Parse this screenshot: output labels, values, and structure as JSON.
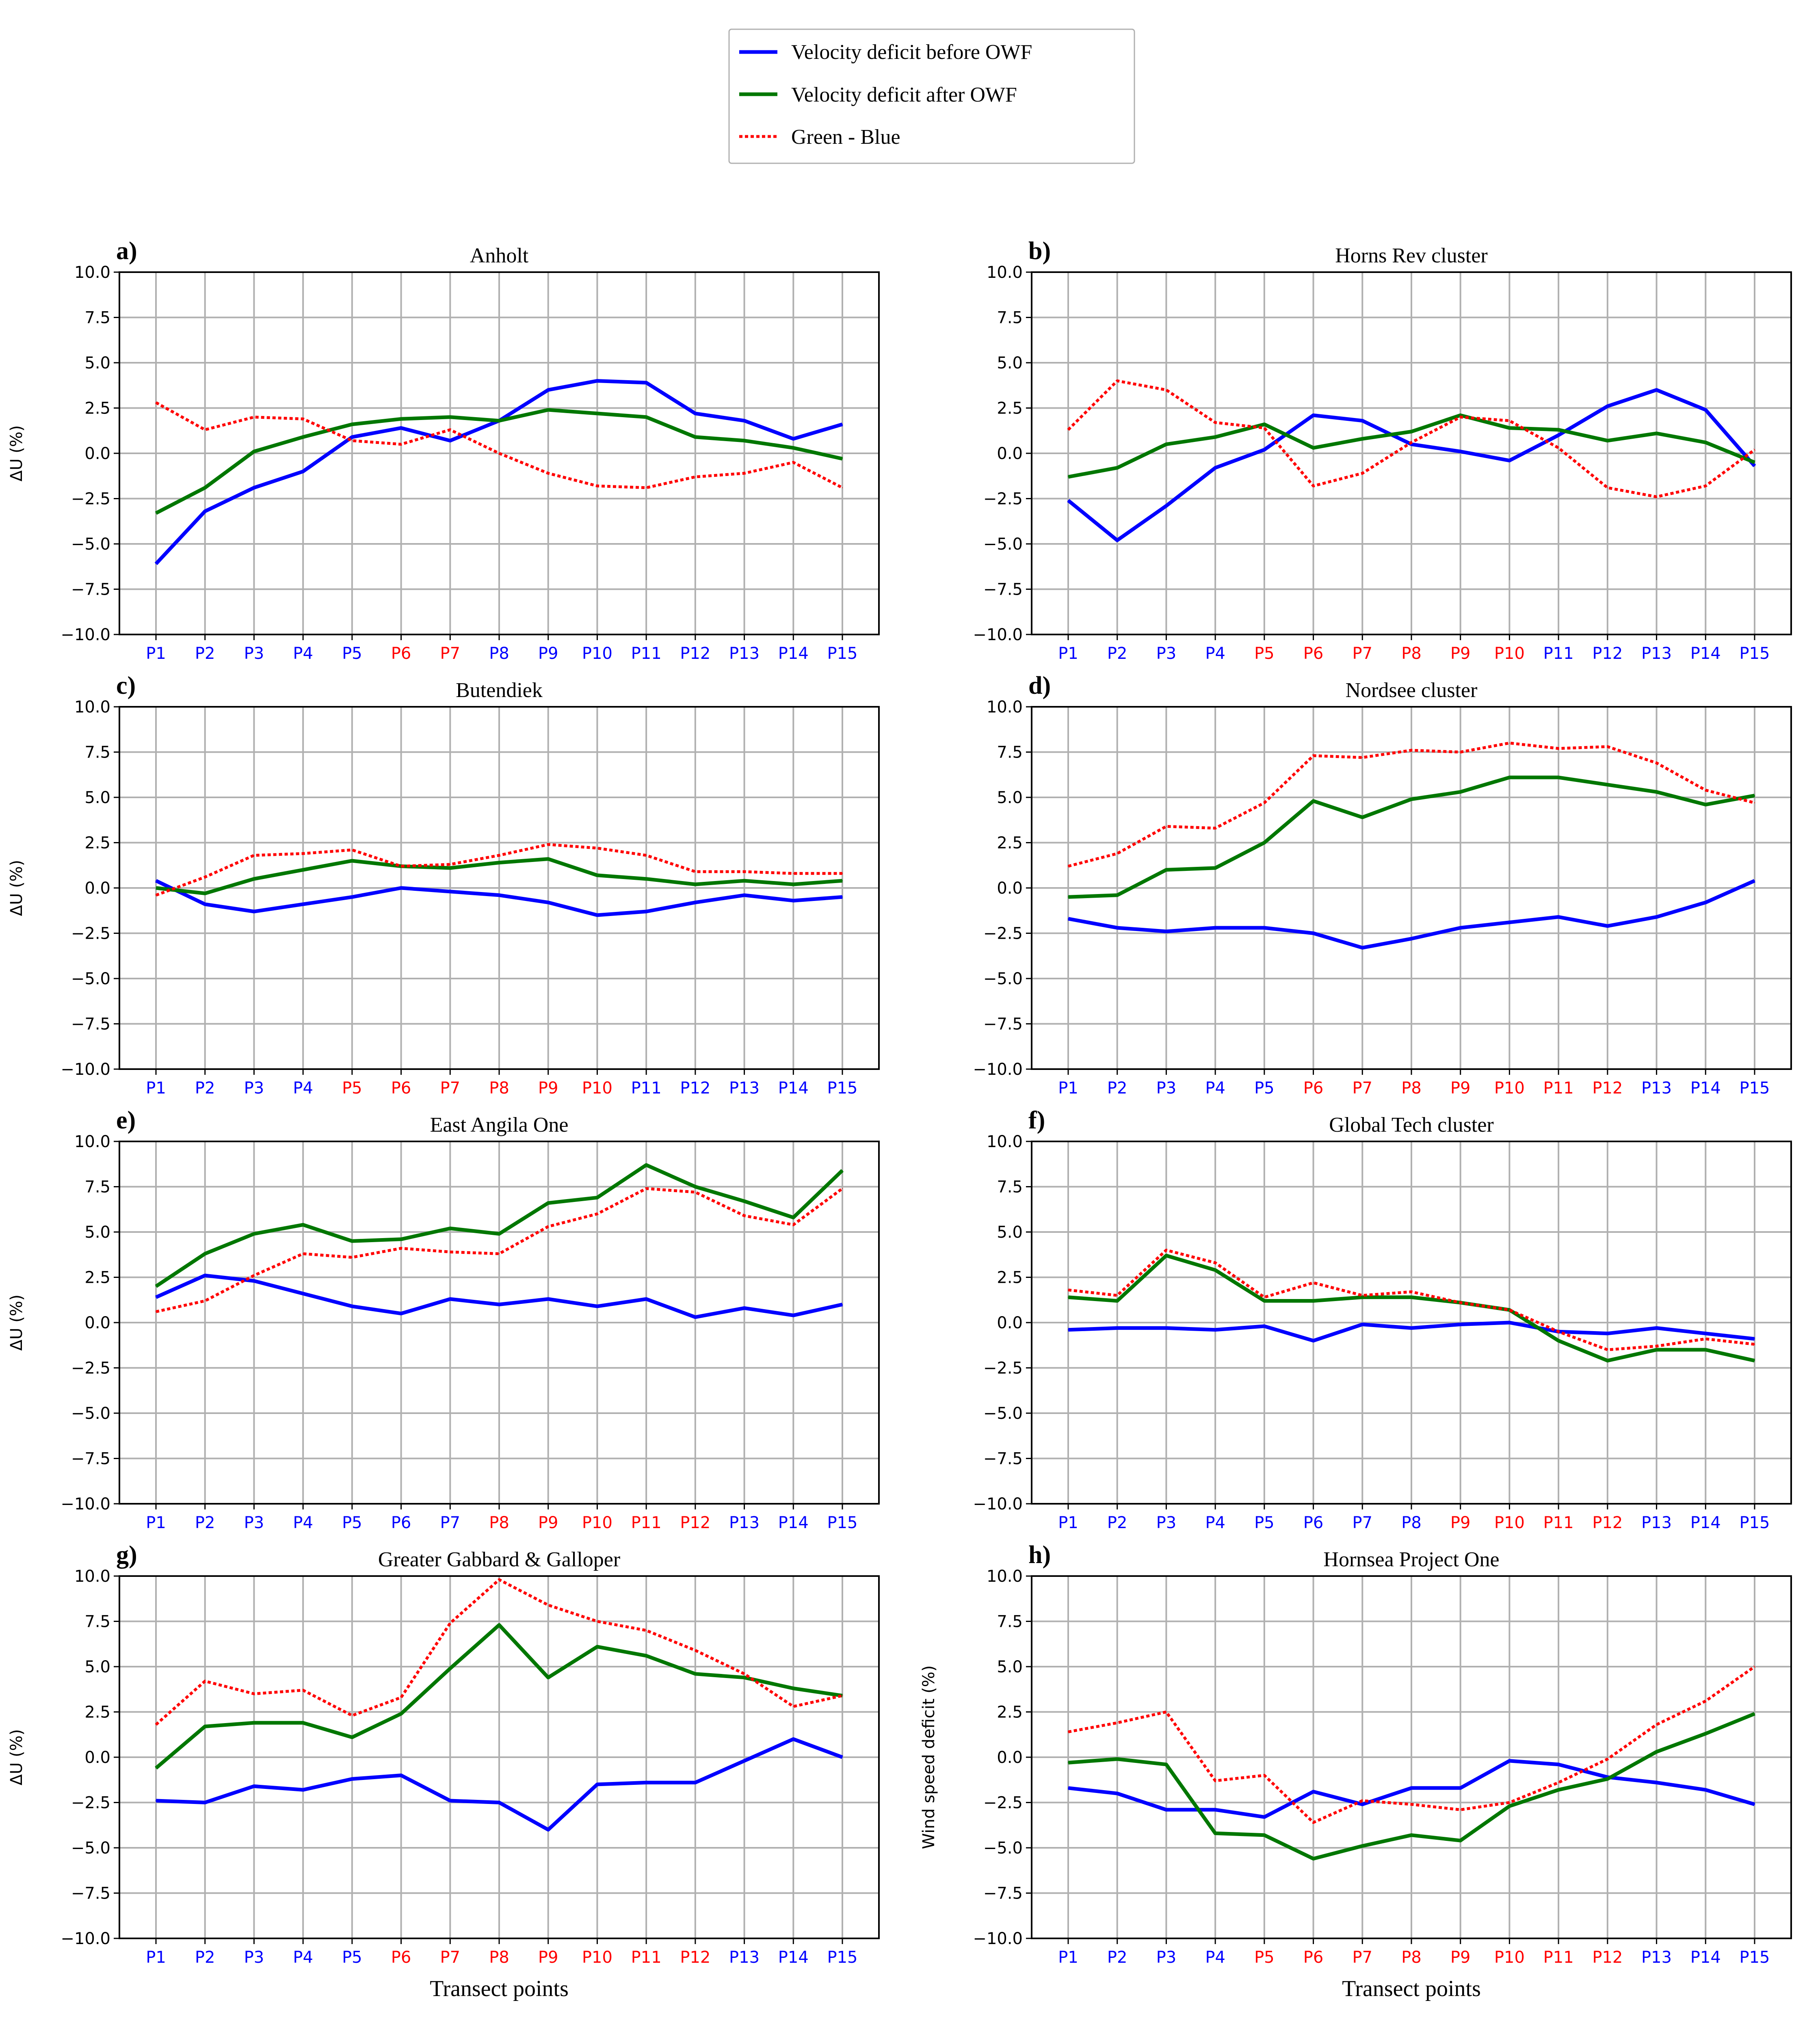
{
  "legend": {
    "entries": [
      {
        "label": "Velocity deficit before OWF",
        "color": "#0000ff",
        "style": "solid"
      },
      {
        "label": "Velocity deficit after OWF",
        "color": "#007700",
        "style": "solid"
      },
      {
        "label": "Green - Blue",
        "color": "#ff0000",
        "style": "dotted"
      }
    ]
  },
  "xlabel_bottom": "Transect points",
  "chart_data": [
    {
      "type": "line",
      "panel": "a)",
      "title": "Anholt",
      "ylabel": "ΔU (%)",
      "xlabel": "",
      "ylim": [
        -10,
        10
      ],
      "yticks": [
        -10,
        -7.5,
        -5,
        -2.5,
        0,
        2.5,
        5,
        7.5,
        10
      ],
      "categories": [
        "P1",
        "P2",
        "P3",
        "P4",
        "P5",
        "P6",
        "P7",
        "P8",
        "P9",
        "P10",
        "P11",
        "P12",
        "P13",
        "P14",
        "P15"
      ],
      "category_colors": [
        "blue",
        "blue",
        "blue",
        "blue",
        "blue",
        "red",
        "red",
        "blue",
        "blue",
        "blue",
        "blue",
        "blue",
        "blue",
        "blue",
        "blue"
      ],
      "series": [
        {
          "name": "Velocity deficit before OWF",
          "values": [
            -6.1,
            -3.2,
            -1.9,
            -1.0,
            0.9,
            1.4,
            0.7,
            1.8,
            3.5,
            4.0,
            3.9,
            2.2,
            1.8,
            0.8,
            1.6
          ]
        },
        {
          "name": "Velocity deficit after OWF",
          "values": [
            -3.3,
            -1.9,
            0.1,
            0.9,
            1.6,
            1.9,
            2.0,
            1.8,
            2.4,
            2.2,
            2.0,
            0.9,
            0.7,
            0.3,
            -0.3
          ]
        },
        {
          "name": "Green - Blue",
          "values": [
            2.8,
            1.3,
            2.0,
            1.9,
            0.7,
            0.5,
            1.3,
            0.0,
            -1.1,
            -1.8,
            -1.9,
            -1.3,
            -1.1,
            -0.5,
            -1.9
          ]
        }
      ]
    },
    {
      "type": "line",
      "panel": "b)",
      "title": "Horns Rev cluster",
      "ylabel": "",
      "xlabel": "",
      "ylim": [
        -10,
        10
      ],
      "yticks": [
        -10,
        -7.5,
        -5,
        -2.5,
        0,
        2.5,
        5,
        7.5,
        10
      ],
      "categories": [
        "P1",
        "P2",
        "P3",
        "P4",
        "P5",
        "P6",
        "P7",
        "P8",
        "P9",
        "P10",
        "P11",
        "P12",
        "P13",
        "P14",
        "P15"
      ],
      "category_colors": [
        "blue",
        "blue",
        "blue",
        "blue",
        "red",
        "red",
        "red",
        "red",
        "red",
        "red",
        "blue",
        "blue",
        "blue",
        "blue",
        "blue"
      ],
      "series": [
        {
          "name": "Velocity deficit before OWF",
          "values": [
            -2.6,
            -4.8,
            -2.9,
            -0.8,
            0.2,
            2.1,
            1.8,
            0.5,
            0.1,
            -0.4,
            1.0,
            2.6,
            3.5,
            2.4,
            -0.7
          ]
        },
        {
          "name": "Velocity deficit after OWF",
          "values": [
            -1.3,
            -0.8,
            0.5,
            0.9,
            1.6,
            0.3,
            0.8,
            1.2,
            2.1,
            1.4,
            1.3,
            0.7,
            1.1,
            0.6,
            -0.5
          ]
        },
        {
          "name": "Green - Blue",
          "values": [
            1.3,
            4.0,
            3.5,
            1.7,
            1.4,
            -1.8,
            -1.1,
            0.6,
            2.0,
            1.8,
            0.3,
            -1.9,
            -2.4,
            -1.8,
            0.2
          ]
        }
      ]
    },
    {
      "type": "line",
      "panel": "c)",
      "title": "Butendiek",
      "ylabel": "ΔU (%)",
      "xlabel": "",
      "ylim": [
        -10,
        10
      ],
      "yticks": [
        -10,
        -7.5,
        -5,
        -2.5,
        0,
        2.5,
        5,
        7.5,
        10
      ],
      "categories": [
        "P1",
        "P2",
        "P3",
        "P4",
        "P5",
        "P6",
        "P7",
        "P8",
        "P9",
        "P10",
        "P11",
        "P12",
        "P13",
        "P14",
        "P15"
      ],
      "category_colors": [
        "blue",
        "blue",
        "blue",
        "blue",
        "red",
        "red",
        "red",
        "red",
        "red",
        "red",
        "blue",
        "blue",
        "blue",
        "blue",
        "blue"
      ],
      "series": [
        {
          "name": "Velocity deficit before OWF",
          "values": [
            0.4,
            -0.9,
            -1.3,
            -0.9,
            -0.5,
            0.0,
            -0.2,
            -0.4,
            -0.8,
            -1.5,
            -1.3,
            -0.8,
            -0.4,
            -0.7,
            -0.5
          ]
        },
        {
          "name": "Velocity deficit after OWF",
          "values": [
            0.0,
            -0.3,
            0.5,
            1.0,
            1.5,
            1.2,
            1.1,
            1.4,
            1.6,
            0.7,
            0.5,
            0.2,
            0.4,
            0.2,
            0.4
          ]
        },
        {
          "name": "Green - Blue",
          "values": [
            -0.4,
            0.6,
            1.8,
            1.9,
            2.1,
            1.2,
            1.3,
            1.8,
            2.4,
            2.2,
            1.8,
            0.9,
            0.9,
            0.8,
            0.8
          ]
        }
      ]
    },
    {
      "type": "line",
      "panel": "d)",
      "title": "Nordsee cluster",
      "ylabel": "",
      "xlabel": "",
      "ylim": [
        -10,
        10
      ],
      "yticks": [
        -10,
        -7.5,
        -5,
        -2.5,
        0,
        2.5,
        5,
        7.5,
        10
      ],
      "categories": [
        "P1",
        "P2",
        "P3",
        "P4",
        "P5",
        "P6",
        "P7",
        "P8",
        "P9",
        "P10",
        "P11",
        "P12",
        "P13",
        "P14",
        "P15"
      ],
      "category_colors": [
        "blue",
        "blue",
        "blue",
        "blue",
        "blue",
        "red",
        "red",
        "red",
        "red",
        "red",
        "red",
        "red",
        "blue",
        "blue",
        "blue"
      ],
      "series": [
        {
          "name": "Velocity deficit before OWF",
          "values": [
            -1.7,
            -2.2,
            -2.4,
            -2.2,
            -2.2,
            -2.5,
            -3.3,
            -2.8,
            -2.2,
            -1.9,
            -1.6,
            -2.1,
            -1.6,
            -0.8,
            0.4
          ]
        },
        {
          "name": "Velocity deficit after OWF",
          "values": [
            -0.5,
            -0.4,
            1.0,
            1.1,
            2.5,
            4.8,
            3.9,
            4.9,
            5.3,
            6.1,
            6.1,
            5.7,
            5.3,
            4.6,
            5.1
          ]
        },
        {
          "name": "Green - Blue",
          "values": [
            1.2,
            1.9,
            3.4,
            3.3,
            4.7,
            7.3,
            7.2,
            7.6,
            7.5,
            8.0,
            7.7,
            7.8,
            6.9,
            5.4,
            4.7
          ]
        }
      ]
    },
    {
      "type": "line",
      "panel": "e)",
      "title": "East Angila One",
      "ylabel": "ΔU (%)",
      "xlabel": "",
      "ylim": [
        -10,
        10
      ],
      "yticks": [
        -10,
        -7.5,
        -5,
        -2.5,
        0,
        2.5,
        5,
        7.5,
        10
      ],
      "categories": [
        "P1",
        "P2",
        "P3",
        "P4",
        "P5",
        "P6",
        "P7",
        "P8",
        "P9",
        "P10",
        "P11",
        "P12",
        "P13",
        "P14",
        "P15"
      ],
      "category_colors": [
        "blue",
        "blue",
        "blue",
        "blue",
        "blue",
        "blue",
        "blue",
        "red",
        "red",
        "red",
        "red",
        "red",
        "blue",
        "blue",
        "blue"
      ],
      "series": [
        {
          "name": "Velocity deficit before OWF",
          "values": [
            1.4,
            2.6,
            2.3,
            1.6,
            0.9,
            0.5,
            1.3,
            1.0,
            1.3,
            0.9,
            1.3,
            0.3,
            0.8,
            0.4,
            1.0
          ]
        },
        {
          "name": "Velocity deficit after OWF",
          "values": [
            2.0,
            3.8,
            4.9,
            5.4,
            4.5,
            4.6,
            5.2,
            4.9,
            6.6,
            6.9,
            8.7,
            7.5,
            6.7,
            5.8,
            8.4
          ]
        },
        {
          "name": "Green - Blue",
          "values": [
            0.6,
            1.2,
            2.6,
            3.8,
            3.6,
            4.1,
            3.9,
            3.8,
            5.3,
            6.0,
            7.4,
            7.2,
            5.9,
            5.4,
            7.4
          ]
        }
      ]
    },
    {
      "type": "line",
      "panel": "f)",
      "title": "Global Tech cluster",
      "ylabel": "",
      "xlabel": "",
      "ylim": [
        -10,
        10
      ],
      "yticks": [
        -10,
        -7.5,
        -5,
        -2.5,
        0,
        2.5,
        5,
        7.5,
        10
      ],
      "categories": [
        "P1",
        "P2",
        "P3",
        "P4",
        "P5",
        "P6",
        "P7",
        "P8",
        "P9",
        "P10",
        "P11",
        "P12",
        "P13",
        "P14",
        "P15"
      ],
      "category_colors": [
        "blue",
        "blue",
        "blue",
        "blue",
        "blue",
        "blue",
        "blue",
        "blue",
        "red",
        "red",
        "red",
        "red",
        "blue",
        "blue",
        "blue"
      ],
      "series": [
        {
          "name": "Velocity deficit before OWF",
          "values": [
            -0.4,
            -0.3,
            -0.3,
            -0.4,
            -0.2,
            -1.0,
            -0.1,
            -0.3,
            -0.1,
            0.0,
            -0.5,
            -0.6,
            -0.3,
            -0.6,
            -0.9
          ]
        },
        {
          "name": "Velocity deficit after OWF",
          "values": [
            1.4,
            1.2,
            3.7,
            2.9,
            1.2,
            1.2,
            1.4,
            1.4,
            1.1,
            0.7,
            -1.0,
            -2.1,
            -1.5,
            -1.5,
            -2.1
          ]
        },
        {
          "name": "Green - Blue",
          "values": [
            1.8,
            1.5,
            4.0,
            3.3,
            1.4,
            2.2,
            1.5,
            1.7,
            1.1,
            0.7,
            -0.5,
            -1.5,
            -1.3,
            -0.9,
            -1.2
          ]
        }
      ]
    },
    {
      "type": "line",
      "panel": "g)",
      "title": "Greater Gabbard & Galloper",
      "ylabel": "ΔU (%)",
      "xlabel": "Transect points",
      "ylim": [
        -10,
        10
      ],
      "yticks": [
        -10,
        -7.5,
        -5,
        -2.5,
        0,
        2.5,
        5,
        7.5,
        10
      ],
      "categories": [
        "P1",
        "P2",
        "P3",
        "P4",
        "P5",
        "P6",
        "P7",
        "P8",
        "P9",
        "P10",
        "P11",
        "P12",
        "P13",
        "P14",
        "P15"
      ],
      "category_colors": [
        "blue",
        "blue",
        "blue",
        "blue",
        "blue",
        "red",
        "red",
        "red",
        "red",
        "red",
        "red",
        "red",
        "blue",
        "blue",
        "blue"
      ],
      "series": [
        {
          "name": "Velocity deficit before OWF",
          "values": [
            -2.4,
            -2.5,
            -1.6,
            -1.8,
            -1.2,
            -1.0,
            -2.4,
            -2.5,
            -4.0,
            -1.5,
            -1.4,
            -1.4,
            -0.2,
            1.0,
            0.0
          ]
        },
        {
          "name": "Velocity deficit after OWF",
          "values": [
            -0.6,
            1.7,
            1.9,
            1.9,
            1.1,
            2.4,
            4.9,
            7.3,
            4.4,
            6.1,
            5.6,
            4.6,
            4.4,
            3.8,
            3.4
          ]
        },
        {
          "name": "Green - Blue",
          "values": [
            1.8,
            4.2,
            3.5,
            3.7,
            2.3,
            3.3,
            7.4,
            9.8,
            8.4,
            7.5,
            7.0,
            5.9,
            4.6,
            2.8,
            3.4
          ]
        }
      ]
    },
    {
      "type": "line",
      "panel": "h)",
      "title": "Hornsea Project One",
      "ylabel": "Wind speed deficit (%)",
      "xlabel": "Transect points",
      "ylim": [
        -10,
        10
      ],
      "yticks": [
        -10,
        -7.5,
        -5,
        -2.5,
        0,
        2.5,
        5,
        7.5,
        10
      ],
      "categories": [
        "P1",
        "P2",
        "P3",
        "P4",
        "P5",
        "P6",
        "P7",
        "P8",
        "P9",
        "P10",
        "P11",
        "P12",
        "P13",
        "P14",
        "P15"
      ],
      "category_colors": [
        "blue",
        "blue",
        "blue",
        "blue",
        "red",
        "red",
        "red",
        "red",
        "red",
        "red",
        "red",
        "red",
        "blue",
        "blue",
        "blue"
      ],
      "series": [
        {
          "name": "Velocity deficit before OWF",
          "values": [
            -1.7,
            -2.0,
            -2.9,
            -2.9,
            -3.3,
            -1.9,
            -2.6,
            -1.7,
            -1.7,
            -0.2,
            -0.4,
            -1.1,
            -1.4,
            -1.8,
            -2.6
          ]
        },
        {
          "name": "Velocity deficit after OWF",
          "values": [
            -0.3,
            -0.1,
            -0.4,
            -4.2,
            -4.3,
            -5.6,
            -4.9,
            -4.3,
            -4.6,
            -2.7,
            -1.8,
            -1.2,
            0.3,
            1.3,
            2.4
          ]
        },
        {
          "name": "Green - Blue",
          "values": [
            1.4,
            1.9,
            2.5,
            -1.3,
            -1.0,
            -3.6,
            -2.4,
            -2.6,
            -2.9,
            -2.5,
            -1.4,
            -0.1,
            1.8,
            3.1,
            5.0
          ]
        }
      ]
    }
  ]
}
